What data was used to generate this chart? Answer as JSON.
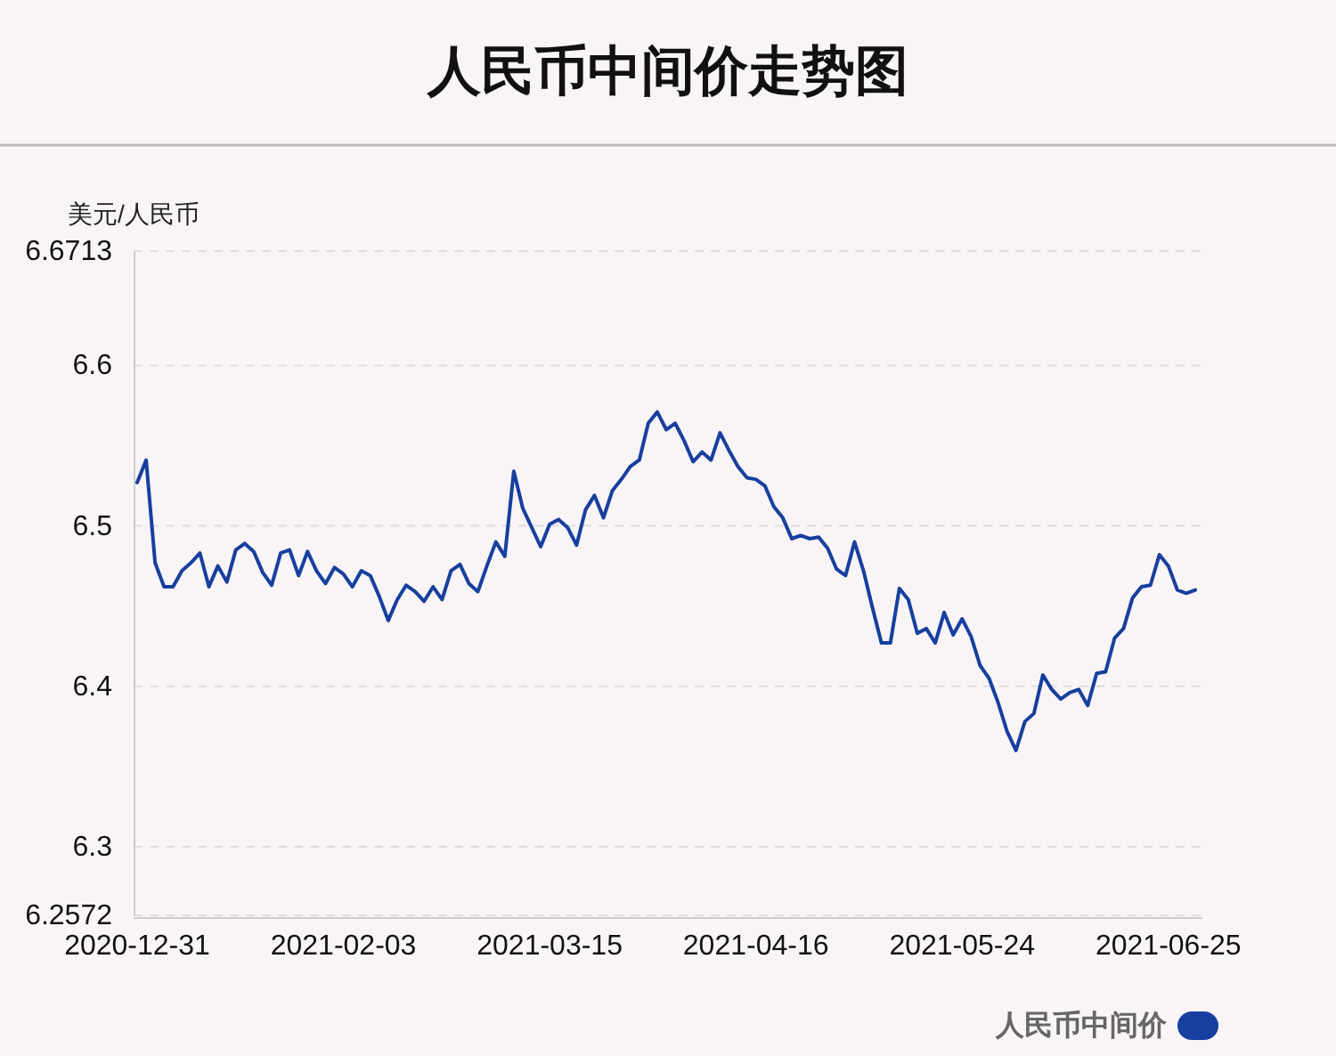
{
  "chart_data": {
    "type": "line",
    "title": "人民币中间价走势图",
    "ylabel": "美元/人民币",
    "categories": [
      "2020-12-31",
      null,
      null,
      null,
      null,
      null,
      null,
      null,
      null,
      null,
      null,
      null,
      null,
      null,
      null,
      null,
      null,
      null,
      null,
      null,
      null,
      null,
      null,
      "2021-02-03",
      null,
      null,
      null,
      null,
      null,
      null,
      null,
      null,
      null,
      null,
      null,
      null,
      null,
      null,
      null,
      null,
      null,
      null,
      null,
      null,
      null,
      null,
      "2021-03-15",
      null,
      null,
      null,
      null,
      null,
      null,
      null,
      null,
      null,
      null,
      null,
      null,
      null,
      null,
      null,
      null,
      null,
      null,
      null,
      null,
      null,
      null,
      "2021-04-16",
      null,
      null,
      null,
      null,
      null,
      null,
      null,
      null,
      null,
      null,
      null,
      null,
      null,
      null,
      null,
      null,
      null,
      null,
      null,
      null,
      null,
      null,
      "2021-05-24",
      null,
      null,
      null,
      null,
      null,
      null,
      null,
      null,
      null,
      null,
      null,
      null,
      null,
      null,
      null,
      null,
      null,
      null,
      null,
      null,
      null,
      null,
      "2021-06-25",
      null,
      null,
      null
    ],
    "series": [
      {
        "name": "人民币中间价",
        "color": "#173f9f",
        "values": [
          6.527,
          6.541,
          6.477,
          6.462,
          6.462,
          6.472,
          6.477,
          6.483,
          6.462,
          6.475,
          6.465,
          6.485,
          6.489,
          6.484,
          6.471,
          6.463,
          6.483,
          6.485,
          6.469,
          6.484,
          6.472,
          6.464,
          6.474,
          6.47,
          6.462,
          6.472,
          6.469,
          6.456,
          6.441,
          6.454,
          6.463,
          6.459,
          6.453,
          6.462,
          6.454,
          6.472,
          6.476,
          6.464,
          6.459,
          6.475,
          6.49,
          6.481,
          6.534,
          6.511,
          6.499,
          6.487,
          6.501,
          6.504,
          6.499,
          6.488,
          6.51,
          6.519,
          6.505,
          6.522,
          6.529,
          6.537,
          6.541,
          6.564,
          6.571,
          6.56,
          6.564,
          6.553,
          6.54,
          6.546,
          6.541,
          6.558,
          6.547,
          6.537,
          6.53,
          6.529,
          6.525,
          6.512,
          6.505,
          6.492,
          6.494,
          6.492,
          6.493,
          6.486,
          6.473,
          6.469,
          6.49,
          6.472,
          6.449,
          6.427,
          6.427,
          6.461,
          6.454,
          6.433,
          6.436,
          6.427,
          6.446,
          6.432,
          6.442,
          6.431,
          6.413,
          6.405,
          6.39,
          6.372,
          6.36,
          6.378,
          6.383,
          6.407,
          6.398,
          6.392,
          6.396,
          6.398,
          6.388,
          6.408,
          6.409,
          6.43,
          6.436,
          6.455,
          6.462,
          6.463,
          6.482,
          6.475,
          6.46,
          6.458,
          6.46
        ]
      }
    ],
    "ylim": [
      6.2572,
      6.6713
    ],
    "yticks": [
      6.2572,
      6.3,
      6.4,
      6.5,
      6.6,
      6.6713
    ],
    "grid": "y",
    "legend": "bottom right",
    "marker": "none",
    "line_style": "solid"
  }
}
